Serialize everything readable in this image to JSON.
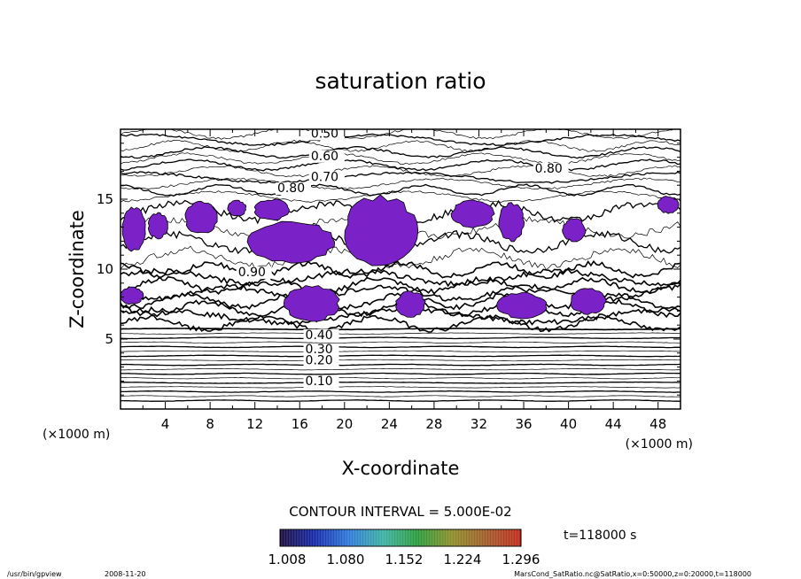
{
  "chart_data": {
    "type": "contour",
    "title": "saturation ratio",
    "xlabel": "X-coordinate",
    "ylabel": "Z-coordinate",
    "x_unit": "(×1000 m)",
    "y_unit": "(×1000 m)",
    "xlim": [
      0,
      50
    ],
    "ylim": [
      0,
      20
    ],
    "x_ticks": [
      4,
      8,
      12,
      16,
      20,
      24,
      28,
      32,
      36,
      40,
      44,
      48
    ],
    "y_ticks": [
      5,
      10,
      15
    ],
    "contour_interval_text": "CONTOUR INTERVAL = 5.000E-02",
    "time_text": "t=118000 s",
    "colorbar": {
      "tick_labels": [
        "1.008",
        "1.080",
        "1.152",
        "1.224",
        "1.296"
      ],
      "colors": [
        "#1a0a3a",
        "#1428a8",
        "#2e78d8",
        "#3ab0a0",
        "#2a9a3a",
        "#8c8c28",
        "#a05a28",
        "#c02818"
      ]
    },
    "contour_labels": [
      {
        "text": "0.50",
        "x": 17.0,
        "z": 19.4
      },
      {
        "text": "0.60",
        "x": 17.0,
        "z": 17.8
      },
      {
        "text": "0.70",
        "x": 17.0,
        "z": 16.3
      },
      {
        "text": "0.80",
        "x": 14.0,
        "z": 15.5
      },
      {
        "text": "0.80",
        "x": 37.0,
        "z": 16.9
      },
      {
        "text": "0.90",
        "x": 10.5,
        "z": 9.5
      },
      {
        "text": "0.40",
        "x": 16.5,
        "z": 5.0
      },
      {
        "text": "0.30",
        "x": 16.5,
        "z": 4.0
      },
      {
        "text": "0.20",
        "x": 16.5,
        "z": 3.2
      },
      {
        "text": "0.10",
        "x": 16.5,
        "z": 1.7
      }
    ],
    "supersaturated_regions": [
      {
        "x": [
          0.2,
          2.2
        ],
        "z": [
          11.3,
          14.4
        ]
      },
      {
        "x": [
          2.5,
          4.2
        ],
        "z": [
          12.2,
          14.0
        ]
      },
      {
        "x": [
          5.8,
          8.6
        ],
        "z": [
          12.5,
          14.8
        ]
      },
      {
        "x": [
          9.6,
          11.2
        ],
        "z": [
          13.8,
          14.9
        ]
      },
      {
        "x": [
          11.5,
          19.0
        ],
        "z": [
          10.5,
          13.4
        ]
      },
      {
        "x": [
          12.0,
          15.0
        ],
        "z": [
          13.5,
          15.0
        ]
      },
      {
        "x": [
          20.0,
          26.4
        ],
        "z": [
          10.3,
          15.2
        ]
      },
      {
        "x": [
          29.6,
          33.3
        ],
        "z": [
          13.0,
          14.9
        ]
      },
      {
        "x": [
          33.8,
          36.0
        ],
        "z": [
          12.0,
          14.7
        ]
      },
      {
        "x": [
          39.5,
          41.5
        ],
        "z": [
          12.0,
          13.6
        ]
      },
      {
        "x": [
          0.0,
          2.0
        ],
        "z": [
          7.5,
          8.7
        ]
      },
      {
        "x": [
          14.7,
          19.5
        ],
        "z": [
          6.3,
          8.8
        ]
      },
      {
        "x": [
          24.6,
          27.2
        ],
        "z": [
          6.6,
          8.4
        ]
      },
      {
        "x": [
          33.7,
          38.0
        ],
        "z": [
          6.5,
          8.3
        ]
      },
      {
        "x": [
          40.2,
          43.3
        ],
        "z": [
          6.8,
          8.6
        ]
      },
      {
        "x": [
          48.0,
          49.8
        ],
        "z": [
          14.0,
          15.2
        ]
      }
    ],
    "grid": false
  },
  "footer": {
    "program": "/usr/bin/gpview",
    "date": "2008-11-20",
    "source": "MarsCond_SatRatio.nc@SatRatio,x=0:50000,z=0:20000,t=118000"
  }
}
